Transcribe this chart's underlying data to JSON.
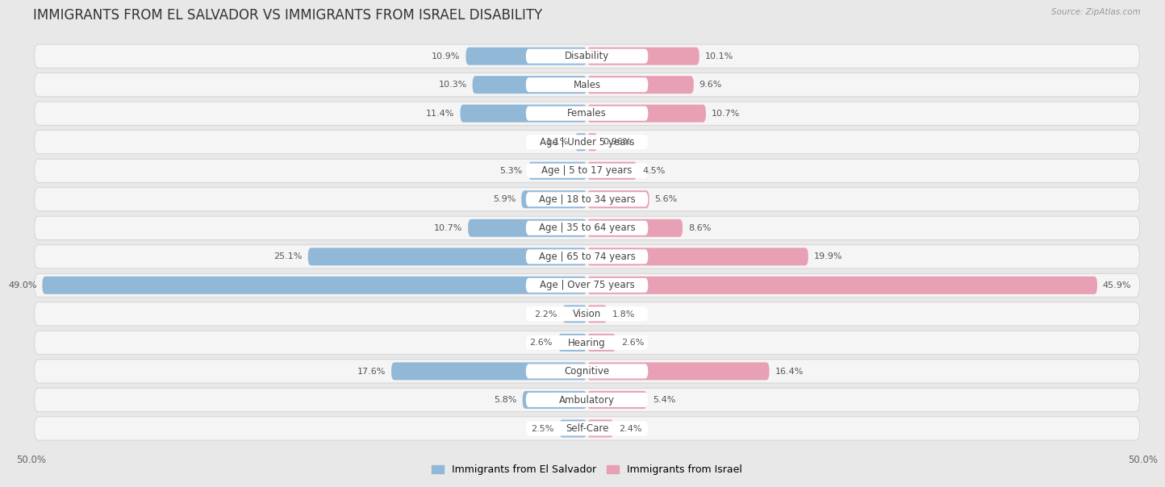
{
  "title": "IMMIGRANTS FROM EL SALVADOR VS IMMIGRANTS FROM ISRAEL DISABILITY",
  "source": "Source: ZipAtlas.com",
  "categories": [
    "Disability",
    "Males",
    "Females",
    "Age | Under 5 years",
    "Age | 5 to 17 years",
    "Age | 18 to 34 years",
    "Age | 35 to 64 years",
    "Age | 65 to 74 years",
    "Age | Over 75 years",
    "Vision",
    "Hearing",
    "Cognitive",
    "Ambulatory",
    "Self-Care"
  ],
  "left_values": [
    10.9,
    10.3,
    11.4,
    1.1,
    5.3,
    5.9,
    10.7,
    25.1,
    49.0,
    2.2,
    2.6,
    17.6,
    5.8,
    2.5
  ],
  "right_values": [
    10.1,
    9.6,
    10.7,
    0.96,
    4.5,
    5.6,
    8.6,
    19.9,
    45.9,
    1.8,
    2.6,
    16.4,
    5.4,
    2.4
  ],
  "left_color": "#92b8d8",
  "right_color": "#e8a0b4",
  "left_label": "Immigrants from El Salvador",
  "right_label": "Immigrants from Israel",
  "axis_max": 50.0,
  "bg_color": "#e8e8e8",
  "row_bg": "#f5f5f5",
  "title_fontsize": 12,
  "label_fontsize": 8.5,
  "value_fontsize": 8,
  "cat_label_fontsize": 8.5
}
